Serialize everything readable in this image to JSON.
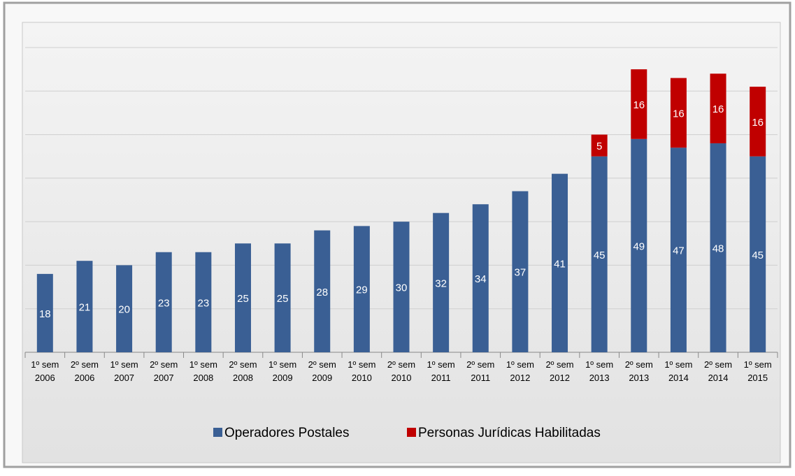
{
  "chart_data": {
    "type": "stacked_bar",
    "categories": [
      "1º sem 2006",
      "2º sem 2006",
      "1º sem 2007",
      "2º sem 2007",
      "1º sem 2008",
      "2º sem 2008",
      "1º sem 2009",
      "2º sem 2009",
      "1º sem 2010",
      "2º sem 2010",
      "1º sem 2011",
      "2º sem 2011",
      "1º sem 2012",
      "2º sem 2012",
      "1º sem 2013",
      "2º sem 2013",
      "1º sem 2014",
      "2º sem 2014",
      "1º sem 2015"
    ],
    "series": [
      {
        "name": "Operadores Postales",
        "color": "#3a5f94",
        "values": [
          18,
          21,
          20,
          23,
          23,
          25,
          25,
          28,
          29,
          30,
          32,
          34,
          37,
          41,
          45,
          49,
          47,
          48,
          45
        ]
      },
      {
        "name": "Personas Jurídicas Habilitadas",
        "color": "#c00000",
        "values": [
          null,
          null,
          null,
          null,
          null,
          null,
          null,
          null,
          null,
          null,
          null,
          null,
          null,
          null,
          5,
          16,
          16,
          16,
          16
        ]
      }
    ],
    "ylim": [
      0,
      70
    ],
    "yticks": [
      0,
      10,
      20,
      30,
      40,
      50,
      60,
      70
    ],
    "grid": true
  }
}
